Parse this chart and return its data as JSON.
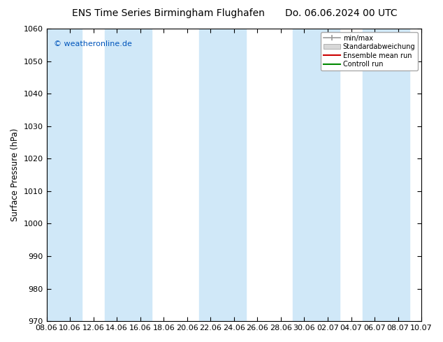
{
  "title": "ENS Time Series Birmingham Flughafen",
  "title_right": "Do. 06.06.2024 00 UTC",
  "ylabel": "Surface Pressure (hPa)",
  "watermark": "© weatheronline.de",
  "ylim": [
    970,
    1060
  ],
  "yticks": [
    970,
    980,
    990,
    1000,
    1010,
    1020,
    1030,
    1040,
    1050,
    1060
  ],
  "xtick_labels": [
    "08.06",
    "10.06",
    "12.06",
    "14.06",
    "16.06",
    "18.06",
    "20.06",
    "22.06",
    "24.06",
    "26.06",
    "28.06",
    "30.06",
    "02.07",
    "04.07",
    "06.07",
    "08.07",
    "10.07"
  ],
  "n_xticks": 17,
  "background_color": "#ffffff",
  "plot_bg_color": "#ffffff",
  "band_color": "#d0e8f8",
  "legend_entries": [
    "min/max",
    "Standardabweichung",
    "Ensemble mean run",
    "Controll run"
  ],
  "legend_colors": [
    "#999999",
    "#cccccc",
    "#cc0000",
    "#008800"
  ],
  "title_fontsize": 10,
  "axis_fontsize": 8,
  "watermark_color": "#0055bb",
  "band_indices": [
    0,
    1,
    3,
    4,
    7,
    8,
    11,
    12,
    14,
    15
  ]
}
